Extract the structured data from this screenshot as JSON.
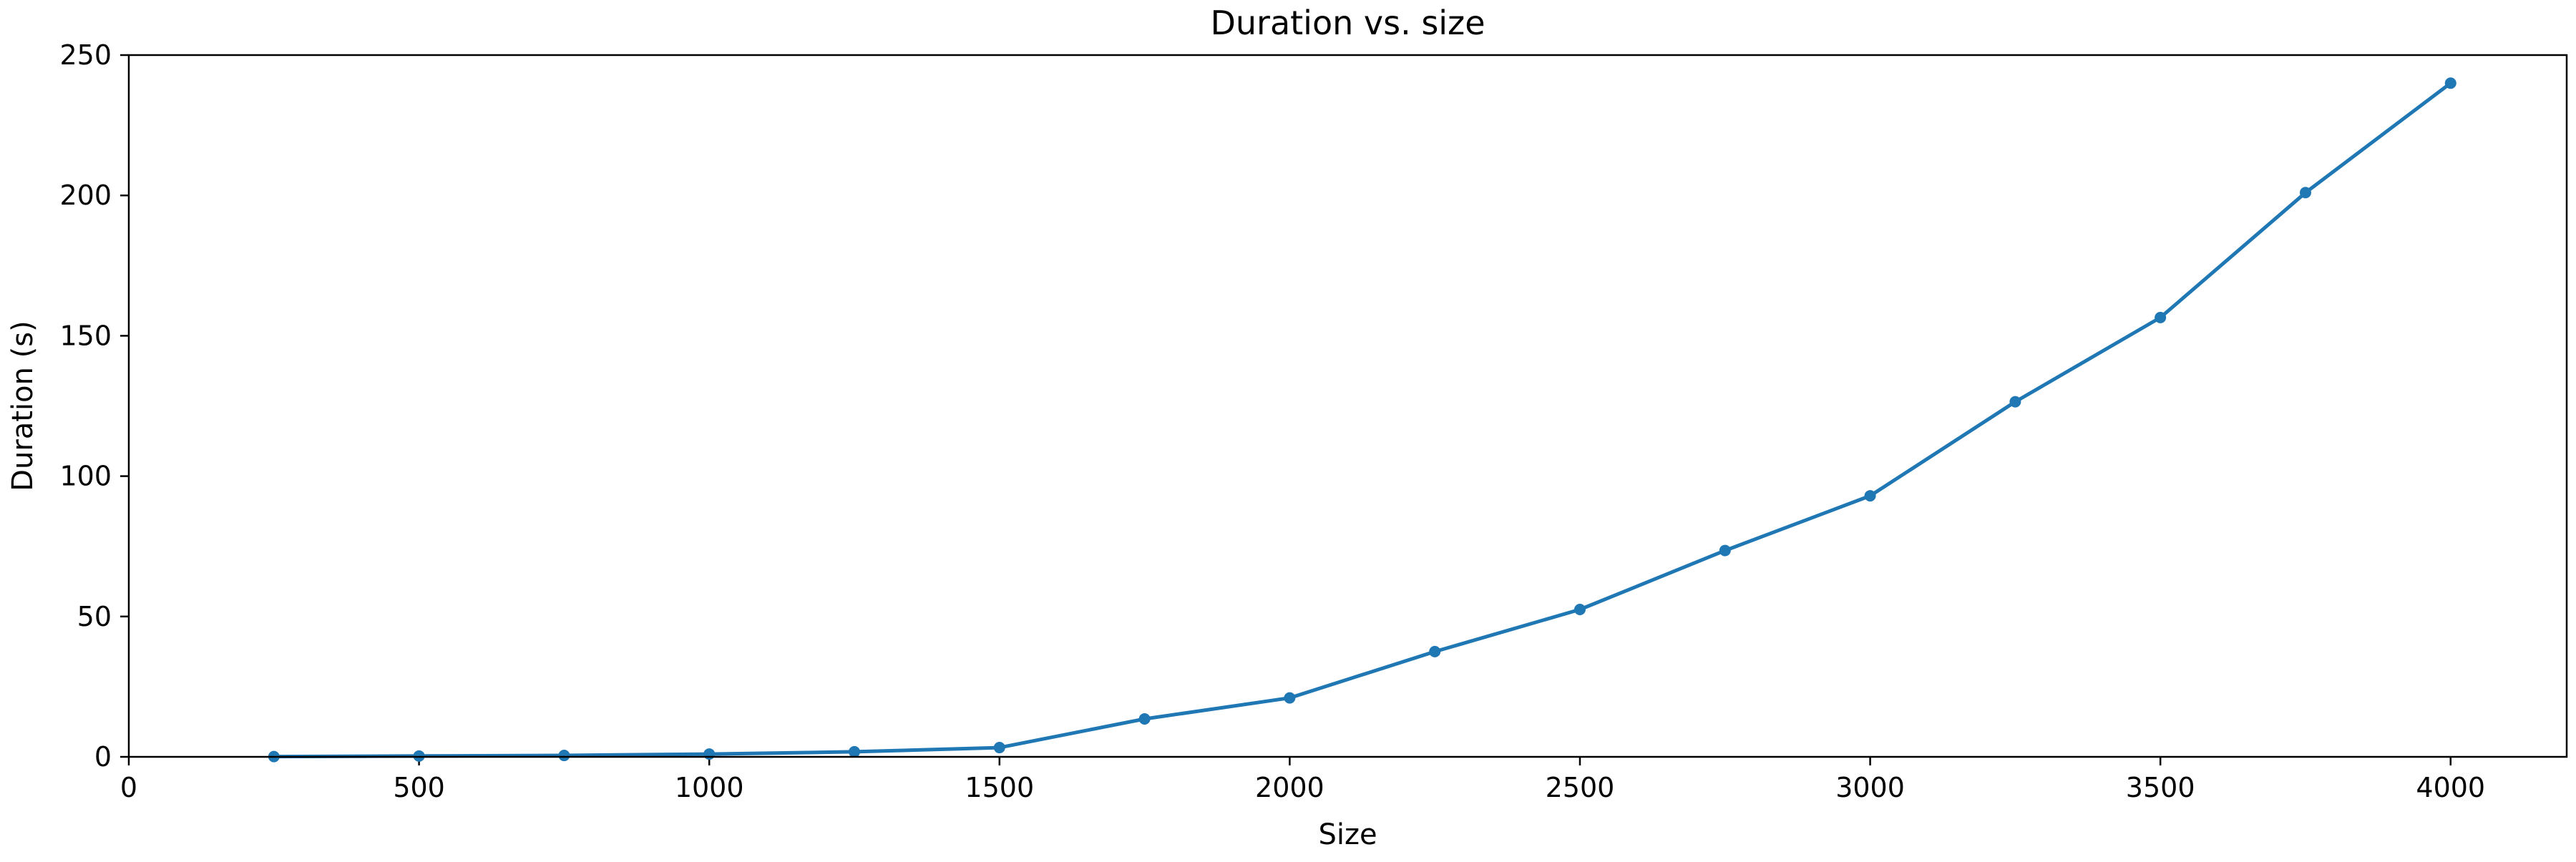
{
  "chart_data": {
    "type": "line",
    "title": "Duration vs. size",
    "xlabel": "Size",
    "ylabel": "Duration (s)",
    "xlim": [
      0,
      4200
    ],
    "ylim": [
      0,
      250
    ],
    "xticks": [
      0,
      500,
      1000,
      1500,
      2000,
      2500,
      3000,
      3500,
      4000
    ],
    "yticks": [
      0,
      50,
      100,
      150,
      200,
      250
    ],
    "grid": false,
    "series": [
      {
        "color": "#1f77b4",
        "marker": "circle",
        "x": [
          250,
          500,
          750,
          1000,
          1250,
          1500,
          1750,
          2000,
          2250,
          2500,
          2750,
          3000,
          3250,
          3500,
          3750,
          4000
        ],
        "y": [
          0.1,
          0.3,
          0.5,
          1.0,
          1.8,
          3.3,
          13.5,
          21.0,
          37.5,
          52.5,
          73.5,
          93.0,
          126.5,
          156.5,
          201.0,
          240.0
        ]
      }
    ]
  }
}
